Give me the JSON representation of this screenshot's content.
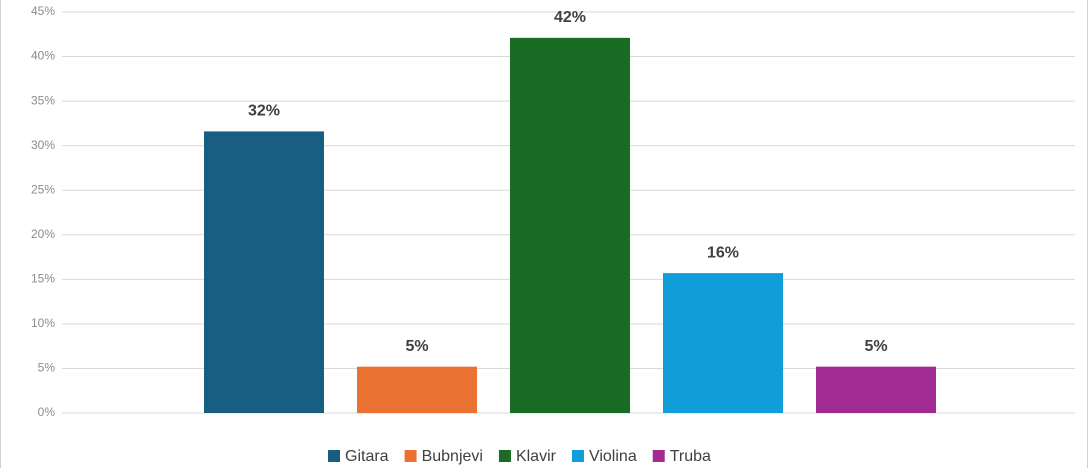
{
  "chart_data": {
    "type": "bar",
    "categories": [
      "Gitara",
      "Bubnjevi",
      "Klavir",
      "Violina",
      "Truba"
    ],
    "values": [
      31.6,
      5.2,
      42.1,
      15.7,
      5.2
    ],
    "value_labels": [
      "32%",
      "5%",
      "42%",
      "16%",
      "5%"
    ],
    "colors": [
      "#175e82",
      "#e97132",
      "#1a6b26",
      "#119ed8",
      "#a02b93"
    ],
    "ylim": [
      0,
      45
    ],
    "yticks": [
      {
        "value": 0,
        "label": "0%"
      },
      {
        "value": 5,
        "label": "5%"
      },
      {
        "value": 10,
        "label": "10%"
      },
      {
        "value": 15,
        "label": "15%"
      },
      {
        "value": 20,
        "label": "20%"
      },
      {
        "value": 25,
        "label": "25%"
      },
      {
        "value": 30,
        "label": "30%"
      },
      {
        "value": 35,
        "label": "35%"
      },
      {
        "value": 40,
        "label": "40%"
      },
      {
        "value": 45,
        "label": "45%"
      }
    ],
    "grid": true,
    "legend": "bottom"
  }
}
